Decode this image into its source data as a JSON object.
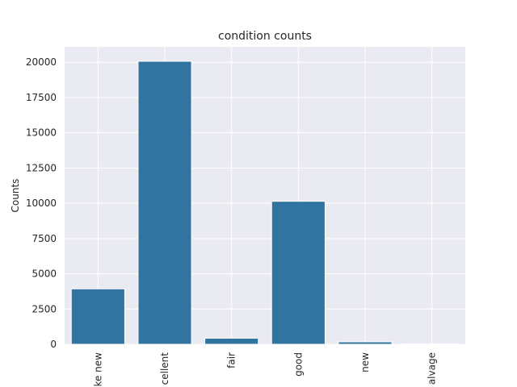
{
  "chart_data": {
    "type": "bar",
    "title": "condition counts",
    "xlabel": "",
    "ylabel": "Counts",
    "categories": [
      "like new",
      "excellent",
      "fair",
      "good",
      "new",
      "salvage"
    ],
    "tick_text": [
      "ke new",
      "cellent",
      "fair",
      "good",
      "new",
      "alvage"
    ],
    "values": [
      3930,
      20070,
      430,
      10140,
      170,
      30
    ],
    "ylim": [
      0,
      21100
    ],
    "yticks": [
      0,
      2500,
      5000,
      7500,
      10000,
      12500,
      15000,
      17500,
      20000
    ],
    "grid": true,
    "bar_color": "#3274a1",
    "background_color": "#eaeaf2",
    "grid_color": "#ffffff"
  }
}
